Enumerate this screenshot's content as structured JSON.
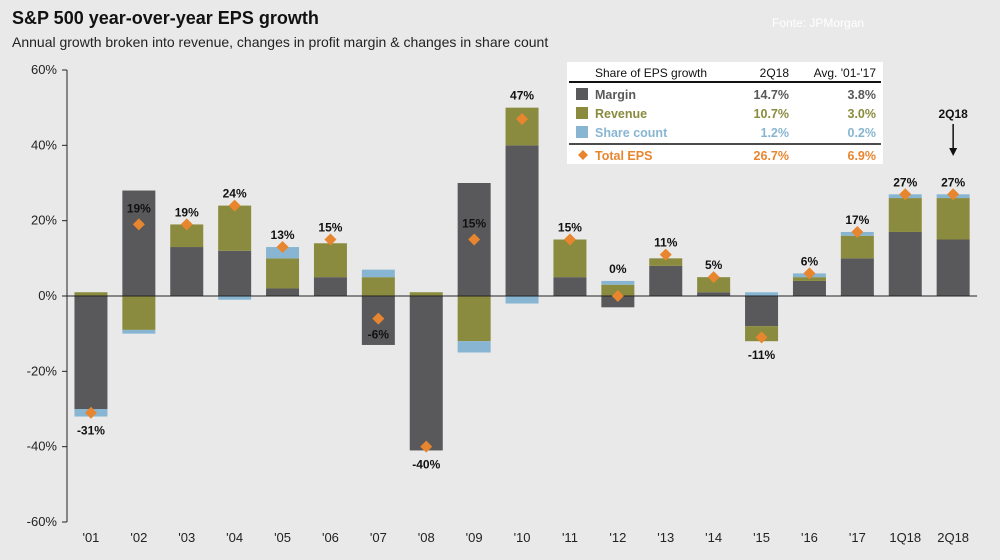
{
  "header": {
    "title": "S&P 500 year-over-year EPS growth",
    "subtitle": "Annual growth broken into revenue, changes in profit margin & changes in share count",
    "source": "Fonte: JPMorgan"
  },
  "colors": {
    "margin": "#59595b",
    "revenue": "#8a8b3e",
    "share_count": "#88b6d2",
    "total_eps": "#e8852f",
    "background": "#e9e9e9"
  },
  "chart_data": {
    "type": "bar",
    "subtype": "stacked-with-markers",
    "categories": [
      "'01",
      "'02",
      "'03",
      "'04",
      "'05",
      "'06",
      "'07",
      "'08",
      "'09",
      "'10",
      "'11",
      "'12",
      "'13",
      "'14",
      "'15",
      "'16",
      "'17",
      "1Q18",
      "2Q18"
    ],
    "series": [
      {
        "name": "Margin",
        "key": "margin",
        "values": [
          -30,
          28,
          13,
          12,
          2,
          5,
          -13,
          -41,
          30,
          40,
          5,
          -3,
          8,
          1,
          -8,
          4,
          10,
          17,
          15
        ]
      },
      {
        "name": "Revenue",
        "key": "revenue",
        "values": [
          1,
          -9,
          6,
          12,
          8,
          9,
          5,
          1,
          -12,
          10,
          10,
          3,
          2,
          4,
          -4,
          1,
          6,
          9,
          11
        ]
      },
      {
        "name": "Share count",
        "key": "share_count",
        "values": [
          -2,
          -1,
          0,
          -1,
          3,
          0,
          2,
          0,
          -3,
          -2,
          0,
          1,
          0,
          0,
          1,
          1,
          1,
          1,
          1
        ]
      }
    ],
    "total_eps": {
      "name": "Total EPS",
      "values": [
        -31,
        19,
        19,
        24,
        13,
        15,
        -6,
        -40,
        15,
        47,
        15,
        0,
        11,
        5,
        -11,
        6,
        17,
        27,
        27
      ],
      "labels": [
        "-31%",
        "19%",
        "19%",
        "24%",
        "13%",
        "15%",
        "-6%",
        "-40%",
        "15%",
        "47%",
        "15%",
        "0%",
        "11%",
        "5%",
        "-11%",
        "6%",
        "17%",
        "27%",
        "27%"
      ]
    },
    "ylim": [
      -60,
      60
    ],
    "yticks": [
      -60,
      -40,
      -20,
      0,
      20,
      40,
      60
    ],
    "ytick_labels": [
      "-60%",
      "-40%",
      "-20%",
      "0%",
      "20%",
      "40%",
      "60%"
    ],
    "annotation": {
      "text": "2Q18",
      "category": "2Q18"
    },
    "table": {
      "headers": [
        "Share of EPS growth",
        "2Q18",
        "Avg. '01-'17"
      ],
      "rows": [
        {
          "label": "Margin",
          "q": "14.7%",
          "avg": "3.8%",
          "key": "margin"
        },
        {
          "label": "Revenue",
          "q": "10.7%",
          "avg": "3.0%",
          "key": "revenue"
        },
        {
          "label": "Share count",
          "q": "1.2%",
          "avg": "0.2%",
          "key": "share_count"
        },
        {
          "label": "Total EPS",
          "q": "26.7%",
          "avg": "6.9%",
          "key": "total_eps"
        }
      ]
    },
    "grid": false,
    "legend": "top-right"
  }
}
